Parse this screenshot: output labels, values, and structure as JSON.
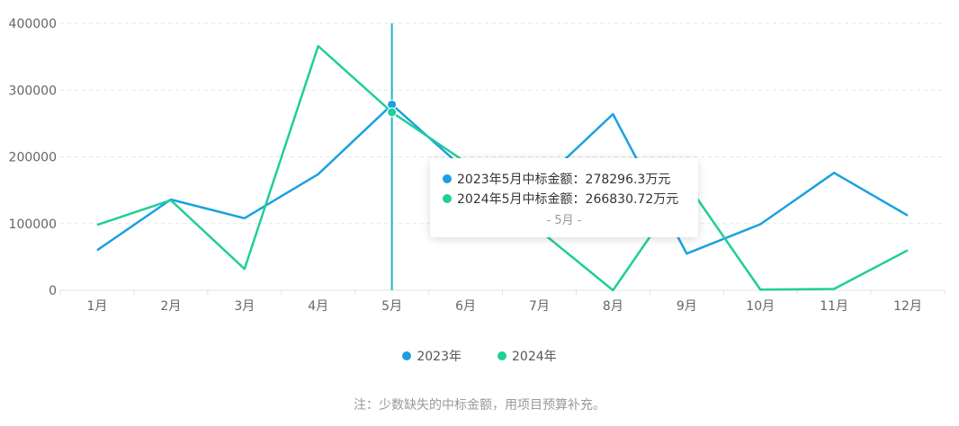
{
  "chart_data": {
    "type": "line",
    "categories": [
      "1月",
      "2月",
      "3月",
      "4月",
      "5月",
      "6月",
      "7月",
      "8月",
      "9月",
      "10月",
      "11月",
      "12月"
    ],
    "series": [
      {
        "name": "2023年",
        "color": "#1aa1e0",
        "values": [
          60000,
          136000,
          108000,
          174000,
          278296.3,
          180000,
          160000,
          264000,
          55000,
          99000,
          176000,
          112000
        ]
      },
      {
        "name": "2024年",
        "color": "#1ecf96",
        "values": [
          98000,
          135000,
          32000,
          366000,
          266830.72,
          192000,
          90000,
          0,
          160000,
          1000,
          2000,
          60000
        ]
      }
    ],
    "ylim": [
      0,
      400000
    ],
    "yticks": [
      "0",
      "100000",
      "200000",
      "300000",
      "400000"
    ],
    "grid": true,
    "legend_position": "bottom",
    "highlight_category": "5月"
  },
  "legend": {
    "series1": "2023年",
    "series2": "2024年"
  },
  "tooltip": {
    "row1": "2023年5月中标金额：278296.3万元",
    "row2": "2024年5月中标金额：266830.72万元",
    "footer": "- 5月 -"
  },
  "footnote": "注：少数缺失的中标金额，用项目预算补充。"
}
